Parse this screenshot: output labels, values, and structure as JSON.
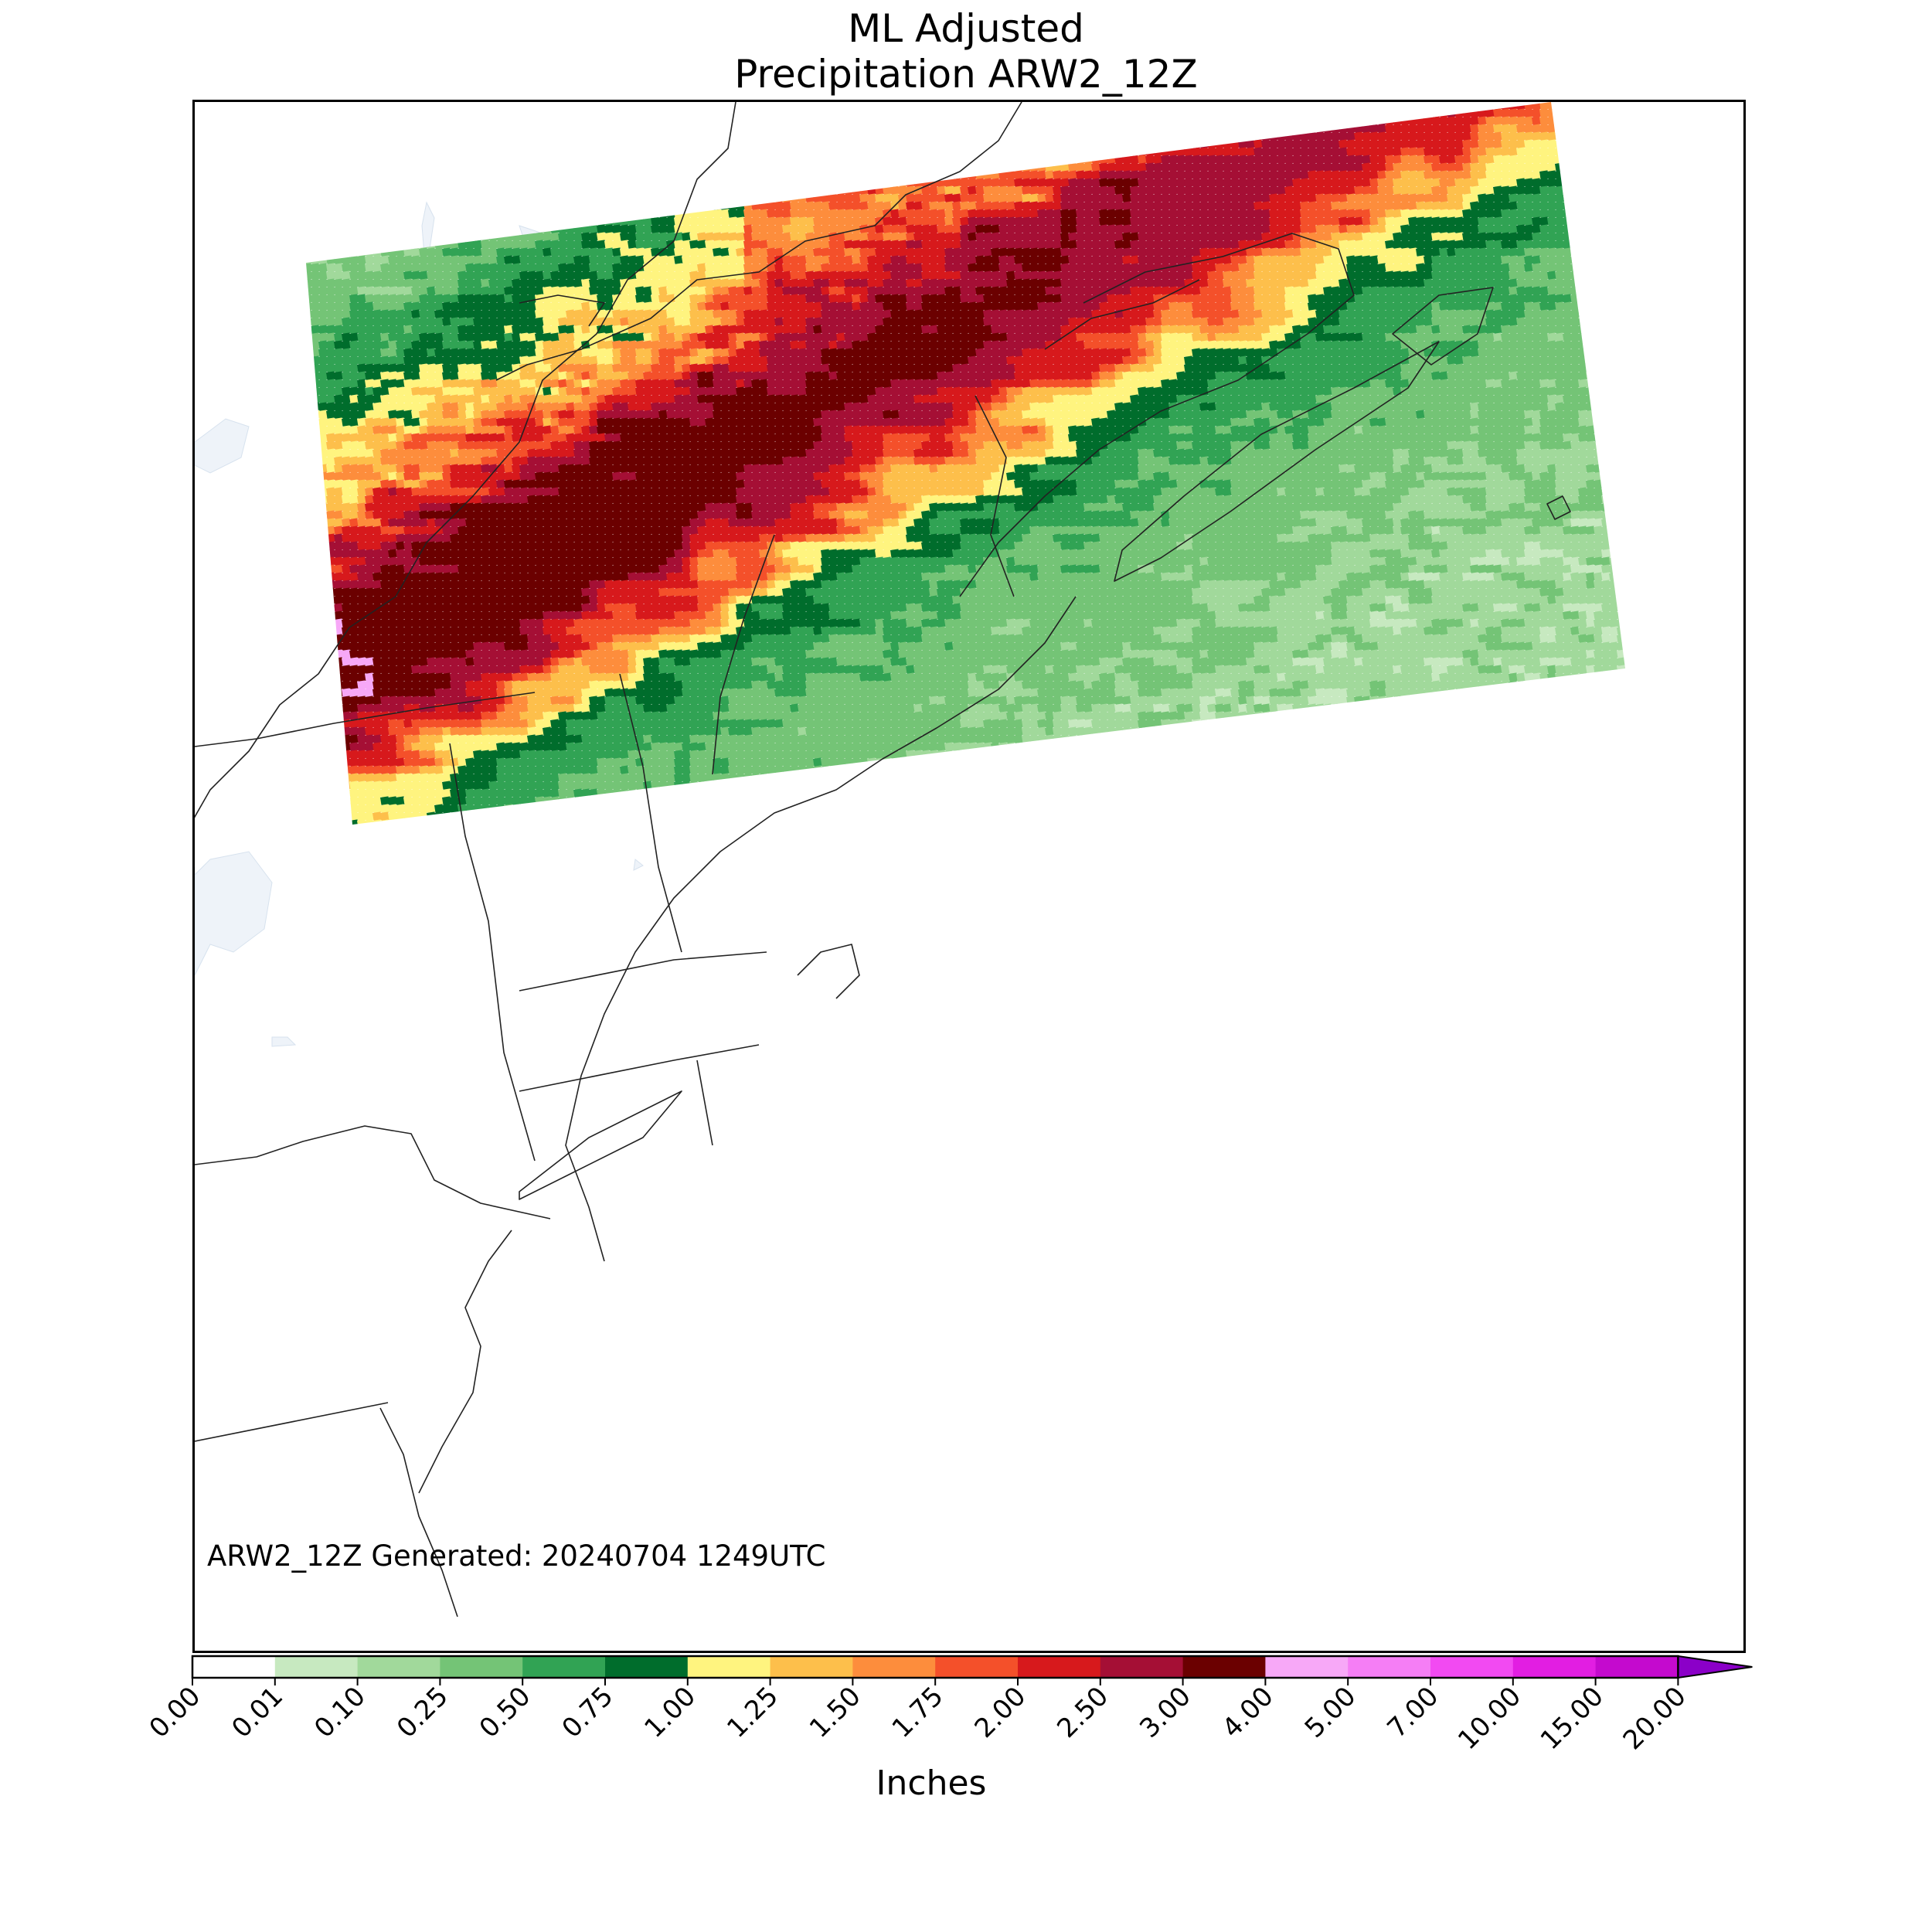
{
  "title": {
    "line1": "ML Adjusted",
    "line2": "Precipitation ARW2_12Z"
  },
  "stamp": "ARW2_12Z Generated: 20240704 1249UTC",
  "colorbar": {
    "label": "Inches",
    "bounds": [
      "0.00",
      "0.01",
      "0.10",
      "0.25",
      "0.50",
      "0.75",
      "1.00",
      "1.25",
      "1.50",
      "1.75",
      "2.00",
      "2.50",
      "3.00",
      "4.00",
      "5.00",
      "7.00",
      "10.00",
      "15.00",
      "20.00"
    ],
    "colors": [
      "#ffffff",
      "#c7e9c0",
      "#a1d99b",
      "#74c476",
      "#31a354",
      "#006d2c",
      "#fff47f",
      "#fdbf4b",
      "#fd8d3c",
      "#f4502a",
      "#d7191c",
      "#a50f35",
      "#6b0000",
      "#f7a8f7",
      "#f57ef5",
      "#f24af2",
      "#e21ee2",
      "#c40ace",
      "#8b00c8"
    ],
    "extend": "max"
  },
  "map": {
    "region": "Northeastern United States and Canadian Maritimes",
    "grid_angle_deg": -9,
    "band_center_value_in": 2.8,
    "peak_value_in": 4.2,
    "pink_patch_value_in": 4.5
  }
}
